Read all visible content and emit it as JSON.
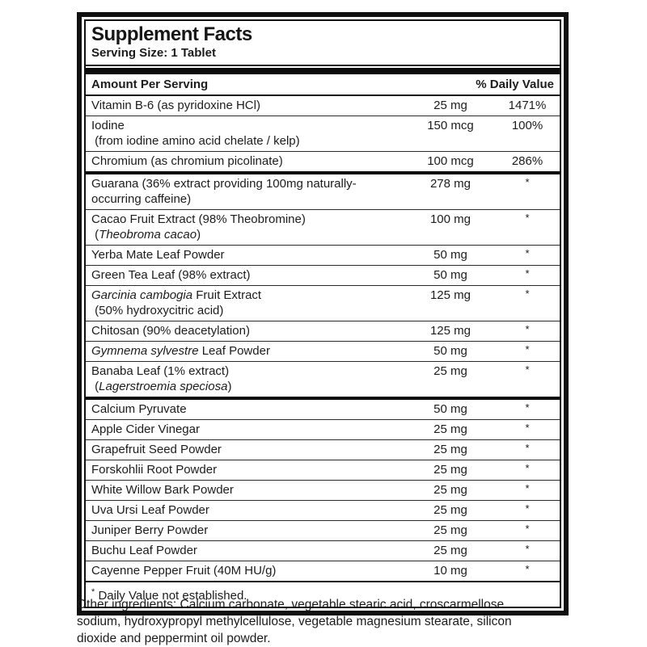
{
  "label": {
    "title": "Supplement Facts",
    "serving_size": "Serving Size: 1 Tablet",
    "table": {
      "header_left": "Amount Per Serving",
      "header_right": "% Daily Value",
      "rows": [
        {
          "lines": [
            [
              {
                "t": "Vitamin B-6 (as pyridoxine HCl)"
              }
            ]
          ],
          "amount": "25 mg",
          "dv": "1471%"
        },
        {
          "lines": [
            [
              {
                "t": "Iodine"
              }
            ],
            [
              {
                "t": " (from iodine amino acid chelate / kelp)"
              }
            ]
          ],
          "amount": "150 mcg",
          "dv": "100%"
        },
        {
          "lines": [
            [
              {
                "t": "Chromium (as chromium picolinate)"
              }
            ]
          ],
          "amount": "100 mcg",
          "dv": "286%",
          "divider_after": true
        },
        {
          "lines": [
            [
              {
                "t": "Guarana (36% extract providing 100mg naturally-"
              }
            ],
            [
              {
                "t": "occurring caffeine)"
              }
            ]
          ],
          "amount": "278 mg",
          "dv": "*"
        },
        {
          "lines": [
            [
              {
                "t": "Cacao Fruit Extract (98% Theobromine)"
              }
            ],
            [
              {
                "t": " ("
              },
              {
                "t": "Theobroma cacao",
                "i": true
              },
              {
                "t": ")"
              }
            ]
          ],
          "amount": "100 mg",
          "dv": "*"
        },
        {
          "lines": [
            [
              {
                "t": "Yerba Mate Leaf Powder"
              }
            ]
          ],
          "amount": "50 mg",
          "dv": "*"
        },
        {
          "lines": [
            [
              {
                "t": "Green Tea Leaf (98% extract)"
              }
            ]
          ],
          "amount": "50 mg",
          "dv": "*"
        },
        {
          "lines": [
            [
              {
                "t": "Garcinia cambogia",
                "i": true
              },
              {
                "t": " Fruit Extract"
              }
            ],
            [
              {
                "t": " (50% hydroxycitric acid)"
              }
            ]
          ],
          "amount": "125 mg",
          "dv": "*"
        },
        {
          "lines": [
            [
              {
                "t": "Chitosan (90% deacetylation)"
              }
            ]
          ],
          "amount": "125 mg",
          "dv": "*"
        },
        {
          "lines": [
            [
              {
                "t": "Gymnema sylvestre",
                "i": true
              },
              {
                "t": " Leaf Powder"
              }
            ]
          ],
          "amount": "50 mg",
          "dv": "*"
        },
        {
          "lines": [
            [
              {
                "t": "Banaba Leaf (1% extract)"
              }
            ],
            [
              {
                "t": " ("
              },
              {
                "t": "Lagerstroemia speciosa",
                "i": true
              },
              {
                "t": ")"
              }
            ]
          ],
          "amount": "25 mg",
          "dv": "*",
          "divider_after": true
        },
        {
          "lines": [
            [
              {
                "t": "Calcium Pyruvate"
              }
            ]
          ],
          "amount": "50 mg",
          "dv": "*"
        },
        {
          "lines": [
            [
              {
                "t": "Apple Cider Vinegar"
              }
            ]
          ],
          "amount": "25 mg",
          "dv": "*"
        },
        {
          "lines": [
            [
              {
                "t": "Grapefruit Seed Powder"
              }
            ]
          ],
          "amount": "25 mg",
          "dv": "*"
        },
        {
          "lines": [
            [
              {
                "t": "Forskohlii Root Powder"
              }
            ]
          ],
          "amount": "25 mg",
          "dv": "*"
        },
        {
          "lines": [
            [
              {
                "t": "White Willow Bark Powder"
              }
            ]
          ],
          "amount": "25 mg",
          "dv": "*"
        },
        {
          "lines": [
            [
              {
                "t": "Uva Ursi Leaf Powder"
              }
            ]
          ],
          "amount": "25 mg",
          "dv": "*"
        },
        {
          "lines": [
            [
              {
                "t": "Juniper Berry Powder"
              }
            ]
          ],
          "amount": "25 mg",
          "dv": "*"
        },
        {
          "lines": [
            [
              {
                "t": "Buchu Leaf Powder"
              }
            ]
          ],
          "amount": "25 mg",
          "dv": "*"
        },
        {
          "lines": [
            [
              {
                "t": "Cayenne Pepper Fruit (40M HU/g)"
              }
            ]
          ],
          "amount": "10 mg",
          "dv": "*"
        }
      ],
      "footnote": {
        "symbol": "*",
        "text": " Daily Value not established."
      }
    },
    "colors": {
      "ink": "#101010",
      "background": "#ffffff"
    },
    "other_ingredients": "Other ingredients: Calcium carbonate, vegetable stearic acid, croscarmellose sodium, hydroxypropyl methylcellulose, vegetable magnesium stearate, silicon dioxide and peppermint oil powder."
  }
}
